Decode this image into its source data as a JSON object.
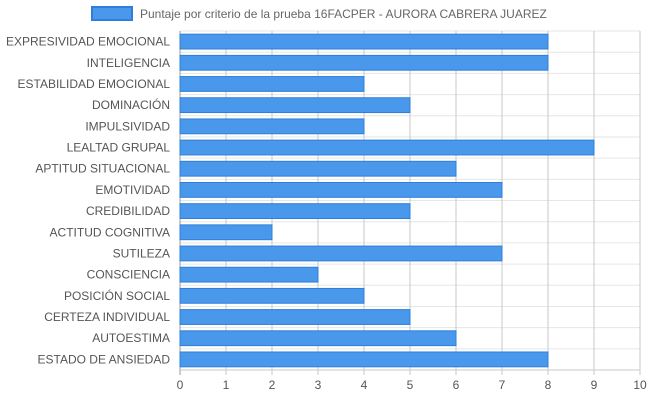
{
  "chart_data": {
    "type": "bar",
    "orientation": "horizontal",
    "categories": [
      "EXPRESIVIDAD EMOCIONAL",
      "INTELIGENCIA",
      "ESTABILIDAD EMOCIONAL",
      "DOMINACIÓN",
      "IMPULSIVIDAD",
      "LEALTAD GRUPAL",
      "APTITUD SITUACIONAL",
      "EMOTIVIDAD",
      "CREDIBILIDAD",
      "ACTITUD COGNITIVA",
      "SUTILEZA",
      "CONSCIENCIA",
      "POSICIÓN SOCIAL",
      "CERTEZA INDIVIDUAL",
      "AUTOESTIMA",
      "ESTADO DE ANSIEDAD"
    ],
    "series": [
      {
        "name": "Puntaje por criterio de la prueba 16FACPER - AURORA CABRERA JUAREZ",
        "values": [
          8,
          8,
          4,
          5,
          4,
          9,
          6,
          7,
          5,
          2,
          7,
          3,
          4,
          5,
          6,
          8
        ],
        "color": "#4a98ec",
        "border_color": "#2f7fd9"
      }
    ],
    "xlim": [
      0,
      10
    ],
    "x_ticks": [
      "0",
      "1",
      "2",
      "3",
      "4",
      "5",
      "6",
      "7",
      "8",
      "9",
      "10"
    ],
    "grid": true,
    "legend_position": "top"
  }
}
